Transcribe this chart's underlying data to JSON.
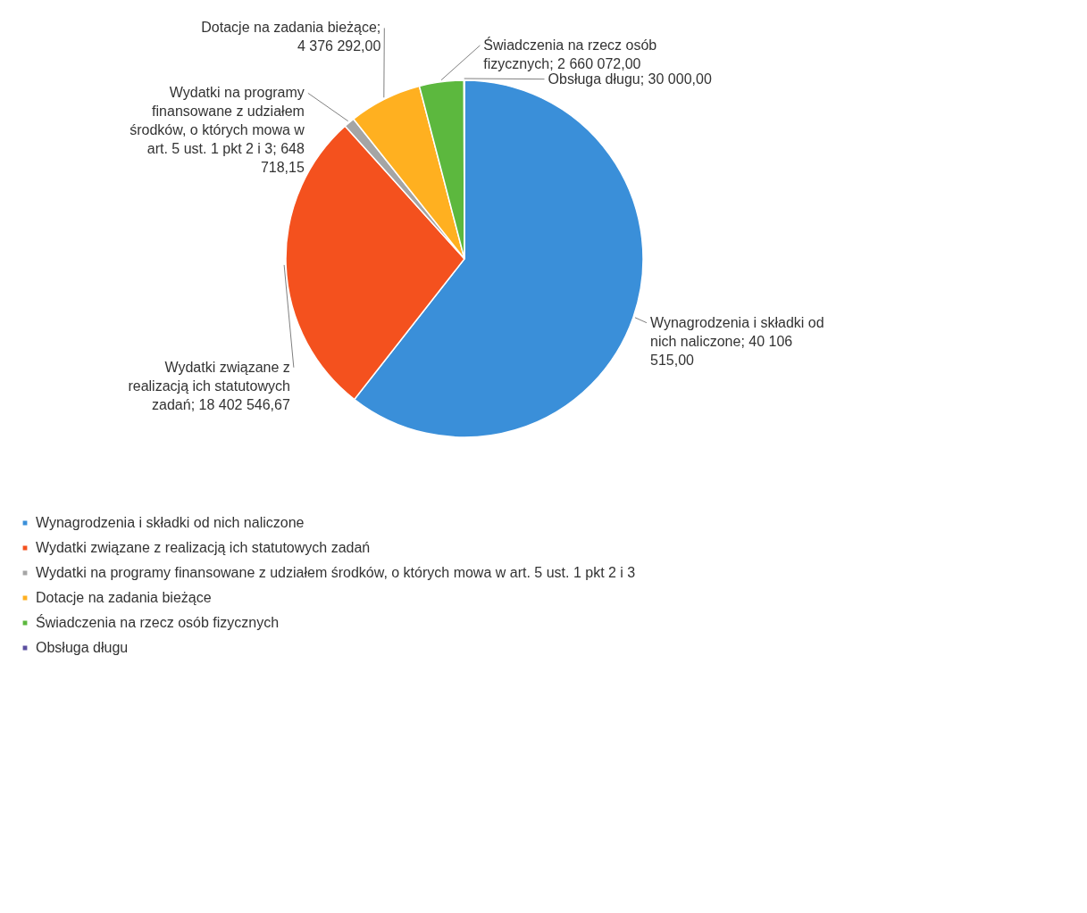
{
  "chart_data": {
    "type": "pie",
    "categories": [
      "Wynagrodzenia i składki od nich naliczone",
      "Wydatki związane z realizacją ich statutowych zadań",
      "Wydatki na programy finansowane z udziałem środków, o których mowa w art. 5 ust. 1 pkt 2 i 3",
      "Dotacje na zadania bieżące",
      "Świadczenia na rzecz osób fizycznych",
      "Obsługa długu"
    ],
    "values": [
      40106515.0,
      18402546.67,
      648718.15,
      4376292.0,
      2660072.0,
      30000.0
    ],
    "value_labels": [
      "Wynagrodzenia i składki od nich naliczone; 40 106 515,00",
      "Wydatki związane z realizacją ich statutowych zadań; 18 402 546,67",
      "Wydatki na programy finansowane z udziałem środków, o których mowa w art. 5 ust. 1 pkt 2 i 3; 648 718,15",
      "Dotacje na zadania bieżące; 4 376 292,00",
      "Świadczenia na rzecz osób fizycznych; 2 660 072,00",
      "Obsługa długu; 30 000,00"
    ],
    "colors": [
      "#3a8fd9",
      "#f4511e",
      "#a5a5a5",
      "#ffb020",
      "#5cb83e",
      "#5b4fa0"
    ],
    "legend": "bottom"
  }
}
